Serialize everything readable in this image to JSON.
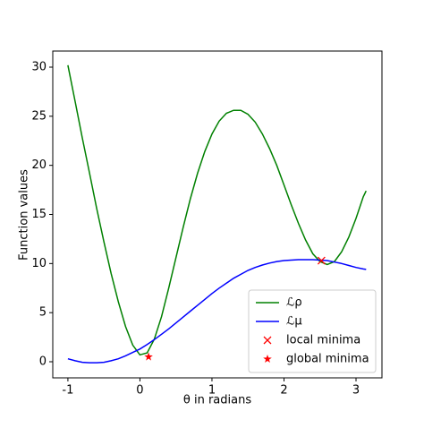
{
  "chart_data": {
    "type": "line",
    "x_label": "θ in radians",
    "y_label": "Function values",
    "x": [
      -1.0,
      -0.9,
      -0.8,
      -0.7,
      -0.6,
      -0.5,
      -0.4,
      -0.3,
      -0.2,
      -0.1,
      0.0,
      0.1,
      0.2,
      0.3,
      0.4,
      0.5,
      0.6,
      0.7,
      0.8,
      0.9,
      1.0,
      1.1,
      1.2,
      1.3,
      1.4,
      1.5,
      1.6,
      1.7,
      1.8,
      1.9,
      2.0,
      2.1,
      2.2,
      2.3,
      2.4,
      2.5,
      2.6,
      2.7,
      2.8,
      2.9,
      3.0,
      3.1,
      3.14
    ],
    "series": [
      {
        "name": "ℒρ",
        "color": "#008000",
        "values": [
          30.2,
          26.5,
          22.8,
          19.2,
          15.6,
          12.2,
          9.0,
          6.1,
          3.6,
          1.7,
          0.7,
          0.9,
          2.3,
          4.6,
          7.5,
          10.6,
          13.7,
          16.6,
          19.2,
          21.4,
          23.2,
          24.5,
          25.3,
          25.6,
          25.6,
          25.2,
          24.4,
          23.2,
          21.7,
          20.0,
          18.0,
          16.0,
          14.1,
          12.4,
          11.0,
          10.2,
          9.9,
          10.2,
          11.2,
          12.7,
          14.6,
          16.8,
          17.4
        ]
      },
      {
        "name": "ℒμ",
        "color": "#0000ff",
        "values": [
          0.3,
          0.1,
          -0.05,
          -0.1,
          -0.1,
          -0.05,
          0.1,
          0.3,
          0.6,
          0.95,
          1.3,
          1.75,
          2.25,
          2.8,
          3.35,
          3.95,
          4.55,
          5.15,
          5.75,
          6.35,
          6.95,
          7.5,
          8.0,
          8.5,
          8.9,
          9.3,
          9.6,
          9.85,
          10.05,
          10.2,
          10.3,
          10.35,
          10.4,
          10.4,
          10.4,
          10.35,
          10.3,
          10.15,
          10.0,
          9.8,
          9.6,
          9.45,
          9.4
        ]
      }
    ],
    "points": [
      {
        "name": "local minima",
        "color": "#ff0000",
        "marker": "x",
        "x": [
          2.52
        ],
        "y": [
          10.3
        ]
      },
      {
        "name": "global minima",
        "color": "#ff0000",
        "marker": "star",
        "x": [
          0.12
        ],
        "y": [
          0.5
        ]
      }
    ],
    "xlim": [
      -1.21,
      3.36
    ],
    "ylim": [
      -1.64,
      31.64
    ],
    "xticks": [
      -1,
      0,
      1,
      2,
      3
    ],
    "yticks": [
      0,
      5,
      10,
      15,
      20,
      25,
      30
    ],
    "legend": "lower right"
  }
}
